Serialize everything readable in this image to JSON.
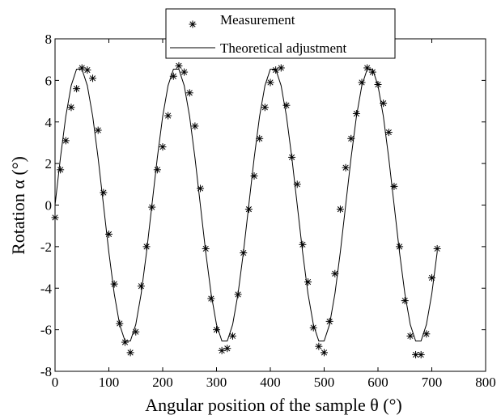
{
  "chart_data": {
    "type": "line",
    "xlabel": "Angular position of the sample θ (°)",
    "ylabel": "Rotation α (°)",
    "xlim": [
      0,
      800
    ],
    "ylim": [
      -8,
      8
    ],
    "x_ticks": [
      "0",
      "100",
      "200",
      "300",
      "400",
      "500",
      "600",
      "700",
      "800"
    ],
    "y_ticks": [
      "-8",
      "-6",
      "-4",
      "-2",
      "0",
      "2",
      "4",
      "6",
      "8"
    ],
    "grid": false,
    "legend_position": "top-center",
    "series": [
      {
        "name": "Measurement",
        "style": "markers",
        "marker": "asterisk",
        "color": "#000000",
        "x": [
          0,
          10,
          20,
          30,
          40,
          50,
          60,
          70,
          80,
          90,
          100,
          110,
          120,
          130,
          140,
          150,
          160,
          170,
          180,
          190,
          200,
          210,
          220,
          230,
          240,
          250,
          260,
          270,
          280,
          290,
          300,
          310,
          320,
          330,
          340,
          350,
          360,
          370,
          380,
          390,
          400,
          410,
          420,
          430,
          440,
          450,
          460,
          470,
          480,
          490,
          500,
          510,
          520,
          530,
          540,
          550,
          560,
          570,
          580,
          590,
          600,
          610,
          620,
          630,
          640,
          650,
          660,
          670,
          680,
          690,
          700,
          710
        ],
        "y": [
          -0.6,
          1.7,
          3.1,
          4.7,
          5.6,
          6.6,
          6.5,
          6.1,
          3.6,
          0.6,
          -1.4,
          -3.8,
          -5.7,
          -6.6,
          -7.1,
          -6.1,
          -3.9,
          -2.0,
          -0.1,
          1.7,
          2.8,
          4.3,
          6.2,
          6.7,
          6.4,
          5.4,
          3.8,
          0.8,
          -2.1,
          -4.5,
          -6.0,
          -7.0,
          -6.9,
          -6.3,
          -4.3,
          -2.3,
          -0.2,
          1.4,
          3.2,
          4.7,
          5.9,
          6.5,
          6.6,
          4.8,
          2.3,
          1.0,
          -1.9,
          -3.7,
          -5.9,
          -6.8,
          -7.1,
          -5.6,
          -3.3,
          -0.2,
          1.8,
          3.2,
          4.4,
          5.9,
          6.6,
          6.4,
          5.8,
          4.9,
          3.5,
          0.9,
          -2.0,
          -4.6,
          -6.3,
          -7.2,
          -7.2,
          -6.2,
          -3.5,
          -2.1
        ]
      },
      {
        "name": "Theoretical adjustment",
        "style": "line",
        "color": "#000000",
        "x": [
          0,
          10,
          20,
          30,
          40,
          50,
          60,
          70,
          80,
          90,
          100,
          110,
          120,
          130,
          140,
          150,
          160,
          170,
          180,
          190,
          200,
          210,
          220,
          230,
          240,
          250,
          260,
          270,
          280,
          290,
          300,
          310,
          320,
          330,
          340,
          350,
          360,
          370,
          380,
          390,
          400,
          410,
          420,
          430,
          440,
          450,
          460,
          470,
          480,
          490,
          500,
          510,
          520,
          530,
          540,
          550,
          560,
          570,
          580,
          590,
          600,
          610,
          620,
          630,
          640,
          650,
          660,
          670,
          680,
          690,
          700,
          710
        ],
        "y": [
          0.0,
          2.27,
          4.27,
          5.75,
          6.54,
          6.54,
          5.75,
          4.27,
          2.27,
          0.0,
          -2.27,
          -4.27,
          -5.75,
          -6.54,
          -6.54,
          -5.75,
          -4.27,
          -2.27,
          0.0,
          2.27,
          4.27,
          5.75,
          6.54,
          6.54,
          5.75,
          4.27,
          2.27,
          0.0,
          -2.27,
          -4.27,
          -5.75,
          -6.54,
          -6.54,
          -5.75,
          -4.27,
          -2.27,
          0.0,
          2.27,
          4.27,
          5.75,
          6.54,
          6.54,
          5.75,
          4.27,
          2.27,
          0.0,
          -2.27,
          -4.27,
          -5.75,
          -6.54,
          -6.54,
          -5.75,
          -4.27,
          -2.27,
          0.0,
          2.27,
          4.27,
          5.75,
          6.54,
          6.54,
          5.75,
          4.27,
          2.27,
          0.0,
          -2.27,
          -4.27,
          -5.75,
          -6.54,
          -6.54,
          -5.75,
          -4.27,
          -2.27
        ]
      }
    ]
  }
}
